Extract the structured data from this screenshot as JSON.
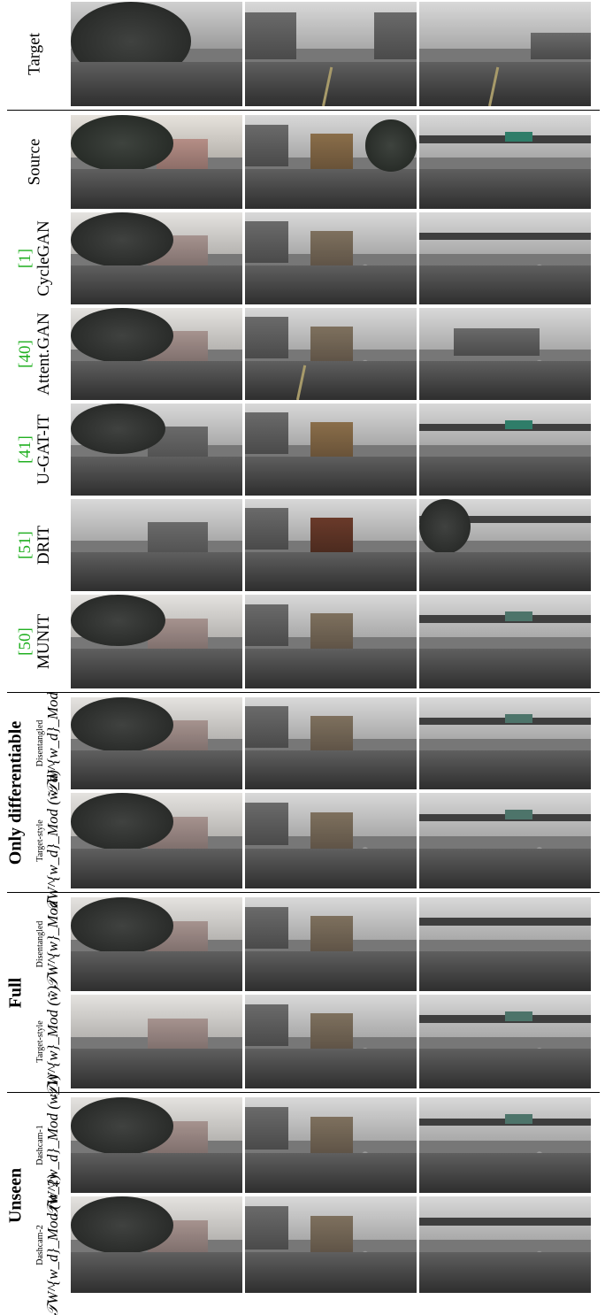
{
  "rows": [
    {
      "key": "target",
      "label": "Target"
    },
    {
      "key": "source",
      "label": "Source"
    },
    {
      "key": "cyclegan",
      "ref": "[1]",
      "label": "CycleGAN"
    },
    {
      "key": "attentgan",
      "ref": "[40]",
      "label": "Attent.GAN"
    },
    {
      "key": "ugatit",
      "ref": "[41]",
      "label": "U-GAT-IT"
    },
    {
      "key": "drit",
      "ref": "[51]",
      "label": "DRIT"
    },
    {
      "key": "munit",
      "ref": "[50]",
      "label": "MUNIT"
    }
  ],
  "groups": {
    "only_differentiable": {
      "title": "Only differentiable",
      "rows": [
        {
          "key": "od_disent",
          "small": "Disentangled",
          "math": "𝒯W^{w_d}_Mod"
        },
        {
          "key": "od_target",
          "small": "Target-style",
          "math": "𝒯W^{w_d}_Mod (w̃_d)"
        }
      ]
    },
    "full": {
      "title": "Full",
      "rows": [
        {
          "key": "full_disent",
          "small": "Disentangled",
          "math": "𝒯W^{w}_Mod"
        },
        {
          "key": "full_target",
          "small": "Target-style",
          "math": "𝒯W^{w}_Mod (w̃)"
        }
      ]
    },
    "unseen": {
      "title": "Unseen",
      "rows": [
        {
          "key": "unseen_1",
          "small": "Dashcam-1",
          "math": "𝒯W^{w_d}_Mod (w_1)"
        },
        {
          "key": "unseen_2",
          "small": "Dashcam-2",
          "math": "𝒯W^{w_d}_Mod (w_2)"
        }
      ]
    }
  },
  "scenes": [
    "street-tree-building",
    "street-truck",
    "street-bridge-sign"
  ]
}
